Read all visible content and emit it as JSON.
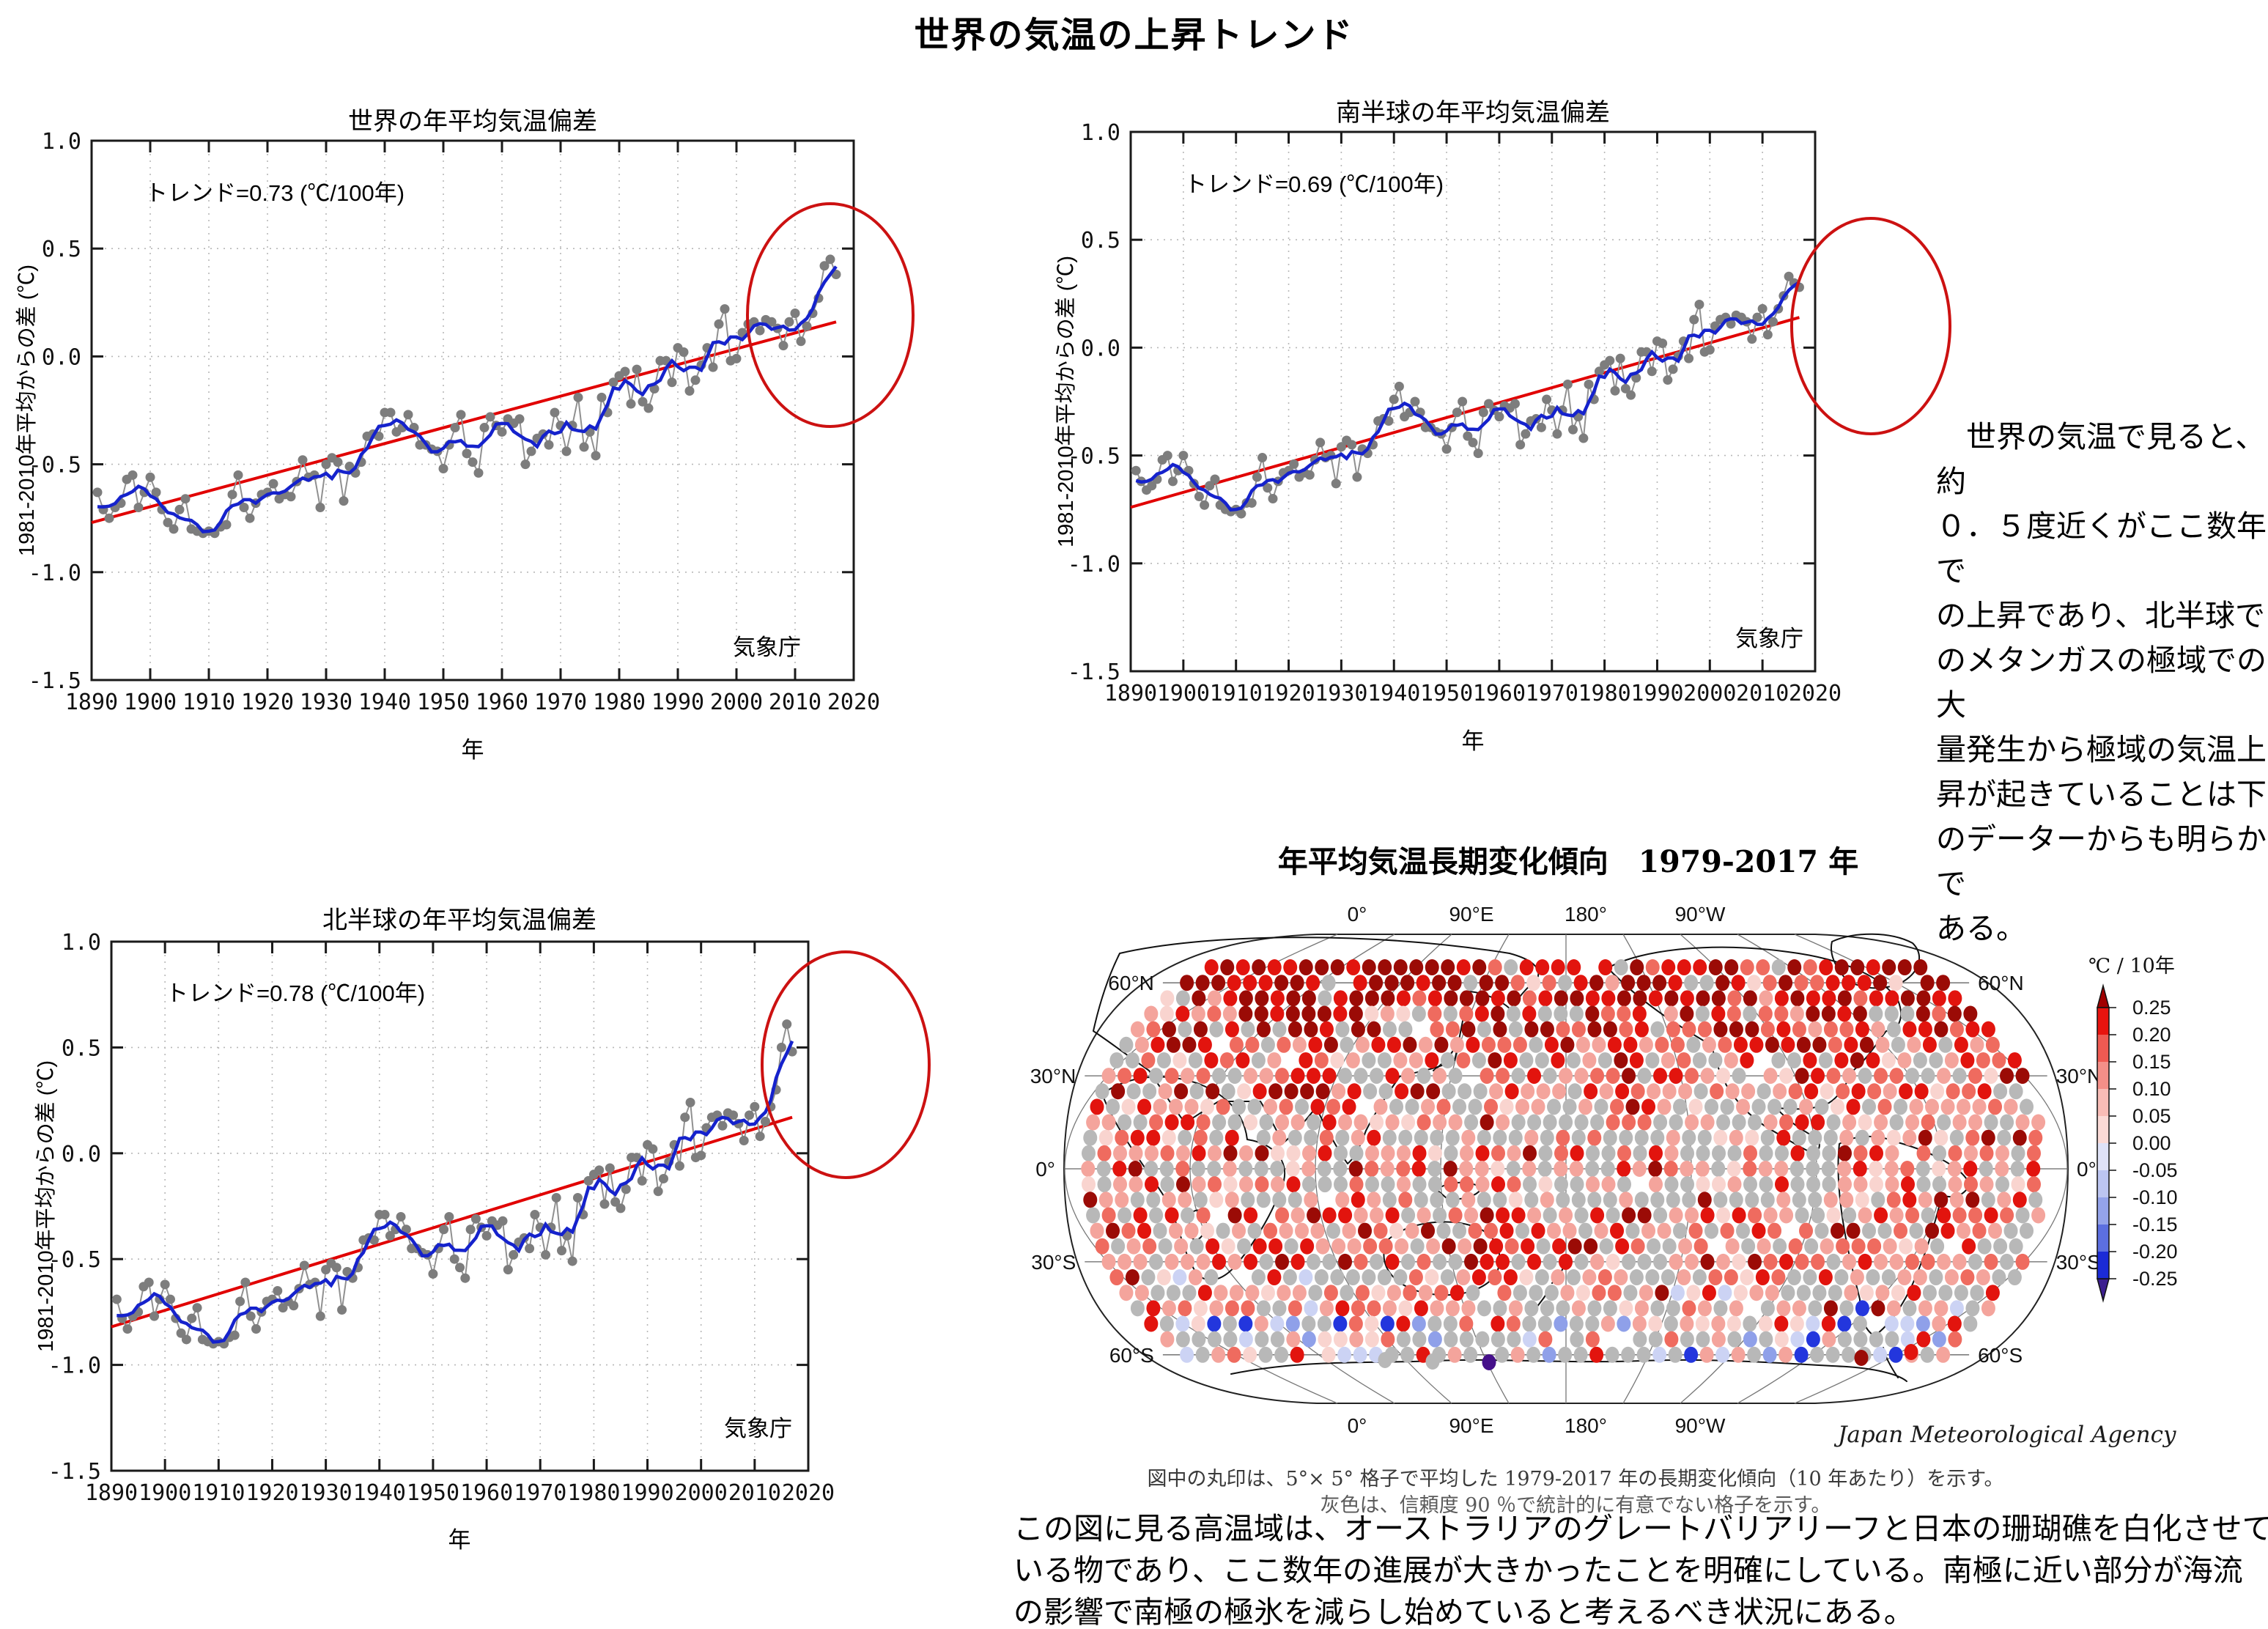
{
  "page": {
    "title": "世界の気温の上昇トレンド",
    "background": "#ffffff",
    "accent_red": "#cc1111"
  },
  "axes_common": {
    "xticks": [
      "1890",
      "1900",
      "1910",
      "1920",
      "1930",
      "1940",
      "1950",
      "1960",
      "1970",
      "1980",
      "1990",
      "2000",
      "2010",
      "2020"
    ],
    "yticks": [
      "1.0",
      "0.5",
      "0.0",
      "-0.5",
      "-1.0",
      "-1.5"
    ],
    "ytick_values": [
      1.0,
      0.5,
      0.0,
      -0.5,
      -1.0,
      -1.5
    ],
    "grid_y_values": [
      0.5,
      0.0,
      -0.5,
      -1.0
    ],
    "xlim": [
      1890,
      2020
    ],
    "ylim": [
      -1.5,
      1.0
    ]
  },
  "chart_data": [
    {
      "id": "world",
      "type": "line",
      "title": "世界の年平均気温偏差",
      "trend_label": "トレンド=0.73 (℃/100年)",
      "trend_per_century": 0.73,
      "ylabel": "1981-2010年平均からの差 (℃)",
      "xlabel": "年",
      "source": "気象庁",
      "x_start": 1891,
      "x_end": 2017,
      "values": [
        -0.63,
        -0.71,
        -0.75,
        -0.7,
        -0.68,
        -0.57,
        -0.55,
        -0.7,
        -0.63,
        -0.56,
        -0.63,
        -0.71,
        -0.77,
        -0.8,
        -0.71,
        -0.66,
        -0.8,
        -0.81,
        -0.82,
        -0.81,
        -0.82,
        -0.79,
        -0.78,
        -0.64,
        -0.55,
        -0.7,
        -0.75,
        -0.68,
        -0.64,
        -0.63,
        -0.59,
        -0.66,
        -0.64,
        -0.65,
        -0.58,
        -0.48,
        -0.56,
        -0.55,
        -0.7,
        -0.5,
        -0.47,
        -0.49,
        -0.67,
        -0.51,
        -0.54,
        -0.49,
        -0.37,
        -0.36,
        -0.37,
        -0.26,
        -0.26,
        -0.35,
        -0.33,
        -0.27,
        -0.33,
        -0.41,
        -0.41,
        -0.43,
        -0.44,
        -0.52,
        -0.41,
        -0.33,
        -0.27,
        -0.45,
        -0.49,
        -0.54,
        -0.33,
        -0.28,
        -0.32,
        -0.35,
        -0.29,
        -0.31,
        -0.29,
        -0.5,
        -0.44,
        -0.38,
        -0.36,
        -0.41,
        -0.26,
        -0.32,
        -0.44,
        -0.32,
        -0.19,
        -0.42,
        -0.35,
        -0.46,
        -0.19,
        -0.26,
        -0.12,
        -0.09,
        -0.07,
        -0.22,
        -0.06,
        -0.21,
        -0.24,
        -0.15,
        -0.02,
        -0.02,
        -0.12,
        0.04,
        0.02,
        -0.16,
        -0.11,
        -0.04,
        0.04,
        -0.05,
        0.15,
        0.22,
        -0.02,
        -0.01,
        0.11,
        0.15,
        0.16,
        0.12,
        0.17,
        0.16,
        0.13,
        0.05,
        0.16,
        0.2,
        0.07,
        0.14,
        0.2,
        0.27,
        0.42,
        0.45,
        0.38
      ],
      "trend_line": {
        "x1": 1890,
        "y1": -0.77,
        "x2": 2017,
        "y2": 0.16
      },
      "highlight_ellipse": {
        "cx": 1133,
        "cy": 430,
        "rx": 113,
        "ry": 152
      }
    },
    {
      "id": "southern-hemisphere",
      "type": "line",
      "title": "南半球の年平均気温偏差",
      "trend_label": "トレンド=0.69 (℃/100年)",
      "trend_per_century": 0.69,
      "ylabel": "1981-2010年平均からの差 (℃)",
      "xlabel": "年",
      "source": "気象庁",
      "x_start": 1891,
      "x_end": 2017,
      "values": [
        -0.57,
        -0.62,
        -0.66,
        -0.64,
        -0.61,
        -0.52,
        -0.5,
        -0.62,
        -0.57,
        -0.5,
        -0.57,
        -0.63,
        -0.69,
        -0.73,
        -0.64,
        -0.61,
        -0.73,
        -0.75,
        -0.76,
        -0.75,
        -0.77,
        -0.72,
        -0.72,
        -0.6,
        -0.51,
        -0.65,
        -0.7,
        -0.62,
        -0.58,
        -0.57,
        -0.54,
        -0.6,
        -0.58,
        -0.59,
        -0.52,
        -0.44,
        -0.51,
        -0.5,
        -0.63,
        -0.46,
        -0.43,
        -0.45,
        -0.6,
        -0.47,
        -0.49,
        -0.45,
        -0.34,
        -0.33,
        -0.34,
        -0.24,
        -0.18,
        -0.32,
        -0.3,
        -0.25,
        -0.3,
        -0.37,
        -0.37,
        -0.39,
        -0.4,
        -0.47,
        -0.37,
        -0.3,
        -0.25,
        -0.41,
        -0.44,
        -0.49,
        -0.3,
        -0.26,
        -0.29,
        -0.32,
        -0.27,
        -0.28,
        -0.26,
        -0.45,
        -0.4,
        -0.34,
        -0.33,
        -0.37,
        -0.24,
        -0.29,
        -0.4,
        -0.29,
        -0.17,
        -0.38,
        -0.32,
        -0.42,
        -0.17,
        -0.24,
        -0.11,
        -0.08,
        -0.06,
        -0.2,
        -0.05,
        -0.19,
        -0.22,
        -0.14,
        -0.02,
        -0.02,
        -0.11,
        0.03,
        0.02,
        -0.15,
        -0.1,
        -0.04,
        0.03,
        -0.05,
        0.13,
        0.2,
        -0.02,
        -0.01,
        0.1,
        0.13,
        0.14,
        0.11,
        0.15,
        0.14,
        0.12,
        0.04,
        0.14,
        0.18,
        0.06,
        0.12,
        0.18,
        0.24,
        0.33,
        0.3,
        0.28
      ],
      "trend_line": {
        "x1": 1890,
        "y1": -0.74,
        "x2": 2017,
        "y2": 0.14
      },
      "highlight_ellipse": {
        "cx": 2553,
        "cy": 445,
        "rx": 108,
        "ry": 147
      }
    },
    {
      "id": "northern-hemisphere",
      "type": "line",
      "title": "北半球の年平均気温偏差",
      "trend_label": "トレンド=0.78 (℃/100年)",
      "trend_per_century": 0.78,
      "ylabel": "1981-2010年平均からの差 (℃)",
      "xlabel": "年",
      "source": "気象庁",
      "x_start": 1891,
      "x_end": 2017,
      "values": [
        -0.69,
        -0.78,
        -0.83,
        -0.77,
        -0.75,
        -0.63,
        -0.61,
        -0.77,
        -0.69,
        -0.62,
        -0.69,
        -0.78,
        -0.85,
        -0.88,
        -0.78,
        -0.73,
        -0.88,
        -0.89,
        -0.9,
        -0.89,
        -0.9,
        -0.87,
        -0.86,
        -0.7,
        -0.61,
        -0.77,
        -0.83,
        -0.75,
        -0.7,
        -0.69,
        -0.65,
        -0.73,
        -0.7,
        -0.72,
        -0.64,
        -0.53,
        -0.62,
        -0.61,
        -0.77,
        -0.55,
        -0.52,
        -0.54,
        -0.74,
        -0.56,
        -0.59,
        -0.54,
        -0.41,
        -0.4,
        -0.41,
        -0.29,
        -0.29,
        -0.39,
        -0.36,
        -0.3,
        -0.36,
        -0.45,
        -0.45,
        -0.47,
        -0.48,
        -0.57,
        -0.45,
        -0.36,
        -0.3,
        -0.5,
        -0.54,
        -0.59,
        -0.36,
        -0.31,
        -0.35,
        -0.39,
        -0.32,
        -0.34,
        -0.32,
        -0.55,
        -0.48,
        -0.42,
        -0.4,
        -0.45,
        -0.29,
        -0.35,
        -0.48,
        -0.35,
        -0.21,
        -0.46,
        -0.39,
        -0.51,
        -0.21,
        -0.29,
        -0.13,
        -0.1,
        -0.08,
        -0.24,
        -0.07,
        -0.23,
        -0.26,
        -0.17,
        -0.02,
        -0.02,
        -0.13,
        0.04,
        0.02,
        -0.18,
        -0.12,
        -0.04,
        0.04,
        -0.06,
        0.17,
        0.24,
        -0.02,
        -0.01,
        0.12,
        0.17,
        0.18,
        0.13,
        0.19,
        0.18,
        0.14,
        0.06,
        0.18,
        0.22,
        0.08,
        0.15,
        0.22,
        0.3,
        0.5,
        0.61,
        0.48
      ],
      "trend_line": {
        "x1": 1890,
        "y1": -0.82,
        "x2": 2017,
        "y2": 0.17
      },
      "highlight_ellipse": {
        "cx": 1154,
        "cy": 1453,
        "rx": 114,
        "ry": 154
      }
    },
    {
      "id": "trend-map",
      "type": "map",
      "title": "年平均気温長期変化傾向　1979-2017 年",
      "period": "1979-2017",
      "units": "℃ / 10年",
      "lon_labels": [
        "0°",
        "90°E",
        "180°",
        "90°W"
      ],
      "lat_labels": [
        "60°N",
        "30°N",
        "0°",
        "30°S",
        "60°S"
      ],
      "lat_values": [
        60,
        30,
        0,
        -30,
        -60
      ],
      "colorbar": {
        "title": "℃ / 10年",
        "tick_labels": [
          "0.25",
          "0.20",
          "0.15",
          "0.10",
          "0.05",
          "0.00",
          "-0.05",
          "-0.10",
          "-0.15",
          "-0.20",
          "-0.25"
        ],
        "segment_colors": [
          "#e8140f",
          "#ef5a52",
          "#f48f88",
          "#f8bcb6",
          "#fbdad6",
          "#dfe2f7",
          "#bcc5f1",
          "#94a3ea",
          "#5c6fe0",
          "#1b2bd6"
        ],
        "arrow_top_color": "#a00000",
        "arrow_bottom_color": "#3d1f8f"
      },
      "dots": {
        "seed": 20180409,
        "palette": {
          "dark": "#9b0b06",
          "red": "#e2140e",
          "sal": "#ef6b5f",
          "pink": "#f4a49c",
          "pale": "#f9d4cf",
          "gray": "#b8b8b8",
          "pblue": "#ccd3f4",
          "lblue": "#8fa0e9",
          "blue": "#2336dd",
          "purple": "#45108a"
        },
        "lats": [
          65,
          60,
          55,
          50,
          45,
          40,
          35,
          30,
          25,
          20,
          15,
          10,
          5,
          0,
          -5,
          -10,
          -15,
          -20,
          -25,
          -30,
          -35,
          -40,
          -45,
          -50,
          -55,
          -60
        ],
        "spacing_px": 21.5,
        "bands": [
          {
            "lat": [
              52,
              90
            ],
            "w": {
              "dark": 0.42,
              "red": 0.27,
              "sal": 0.09,
              "pink": 0.06,
              "pale": 0.02,
              "gray": 0.1,
              "none": 0.04
            }
          },
          {
            "lat": [
              38,
              52
            ],
            "w": {
              "dark": 0.2,
              "red": 0.24,
              "sal": 0.17,
              "pink": 0.13,
              "pale": 0.04,
              "gray": 0.2,
              "none": 0.02
            }
          },
          {
            "lat": [
              22,
              38
            ],
            "w": {
              "dark": 0.07,
              "red": 0.18,
              "sal": 0.2,
              "pink": 0.2,
              "pale": 0.05,
              "gray": 0.28,
              "none": 0.02
            }
          },
          {
            "lat": [
              8,
              22
            ],
            "w": {
              "dark": 0.03,
              "red": 0.1,
              "sal": 0.15,
              "pink": 0.28,
              "pale": 0.08,
              "gray": 0.34,
              "none": 0.02
            }
          },
          {
            "lat": [
              -12,
              8
            ],
            "w": {
              "dark": 0.04,
              "red": 0.1,
              "sal": 0.14,
              "pink": 0.3,
              "pale": 0.06,
              "gray": 0.34,
              "none": 0.02
            }
          },
          {
            "lat": [
              -32,
              -12
            ],
            "w": {
              "dark": 0.07,
              "red": 0.15,
              "sal": 0.16,
              "pink": 0.23,
              "pale": 0.05,
              "gray": 0.31,
              "none": 0.03
            }
          },
          {
            "lat": [
              -46,
              -32
            ],
            "w": {
              "dark": 0.02,
              "red": 0.08,
              "sal": 0.12,
              "pink": 0.24,
              "pale": 0.09,
              "gray": 0.39,
              "pblue": 0.03,
              "none": 0.03
            }
          },
          {
            "lat": [
              -61,
              -46
            ],
            "w": {
              "red": 0.04,
              "sal": 0.05,
              "pink": 0.11,
              "pale": 0.08,
              "gray": 0.46,
              "pblue": 0.1,
              "lblue": 0.06,
              "blue": 0.04,
              "none": 0.06
            }
          },
          {
            "lat": [
              -90,
              -61
            ],
            "w": {
              "gray": 0.35,
              "pblue": 0.1,
              "lblue": 0.08,
              "blue": 0.06,
              "red": 0.05,
              "pink": 0.06,
              "none": 0.3
            }
          }
        ],
        "clusters": [
          {
            "lat": [
              -14,
              18
            ],
            "fx": [
              0.45,
              0.78
            ],
            "boost": {
              "gray": 2.6,
              "pale": 1.3
            }
          },
          {
            "lat": [
              44,
              72
            ],
            "fx": [
              0.02,
              0.42
            ],
            "boost": {
              "dark": 2.2,
              "red": 1.3
            }
          },
          {
            "lat": [
              -38,
              -20
            ],
            "fx": [
              0.36,
              0.56
            ],
            "boost": {
              "dark": 2.4,
              "red": 1.9
            }
          },
          {
            "lat": [
              -60,
              -42
            ],
            "fx": [
              0.76,
              0.93
            ],
            "boost": {
              "blue": 5.0,
              "lblue": 4.0,
              "pblue": 2.0
            }
          }
        ],
        "extra_dots": [
          {
            "x": 450,
            "y": 601,
            "c": "gray"
          },
          {
            "x": 515,
            "y": 603,
            "c": "gray"
          },
          {
            "x": 592,
            "y": 604,
            "c": "purple"
          },
          {
            "x": 1100,
            "y": 598,
            "c": "dark"
          },
          {
            "x": 1168,
            "y": 590,
            "c": "red"
          }
        ]
      },
      "coastlines": [
        "M 88 46 C 200 20 420 14 620 46 C 650 54 664 66 658 80 C 640 96 630 110 621 122 C 606 108 584 100 566 98 C 556 130 552 164 545 192 C 520 204 492 208 470 214 C 452 240 436 264 424 288 C 416 310 408 326 399 333 C 388 318 372 290 356 256 C 342 274 326 292 311 305 C 300 284 290 264 280 248 C 262 248 240 248 223 248 C 206 258 190 270 177 277 C 160 255 143 228 128 206 C 102 188 76 168 52 152 C 60 116 72 78 88 46 Z",
        "M 64 238 C 100 212 150 208 196 224 C 236 240 258 266 262 300 C 300 306 318 330 312 356 C 300 394 276 436 248 470 C 228 494 204 500 190 478 C 174 452 168 412 150 380 C 124 338 84 290 64 238 Z",
        "M 186 400 C 196 392 206 398 206 414 C 204 432 194 442 186 434 C 182 422 182 410 186 400 Z",
        "M 455 436 C 480 414 530 406 570 418 C 600 428 612 452 604 478 C 594 502 560 514 524 512 C 490 510 462 496 452 474 C 446 460 448 448 455 436 Z",
        "M 520 368 C 540 356 566 356 582 366 C 576 378 552 384 534 380 Z",
        "M 516 206 C 530 196 544 182 550 164",
        "M 656 530 C 664 520 672 510 676 500 M 678 496 C 686 488 692 480 694 472",
        "M 754 66 C 800 40 900 30 1000 44 C 1080 54 1130 80 1150 110 C 1160 135 1150 152 1134 152 C 1120 170 1108 190 1090 205 C 1080 222 1072 240 1056 250 C 1030 262 1005 258 984 257 C 1000 275 1020 288 1039 298 C 1048 310 1040 320 1028 316 C 1008 306 990 294 972 284 C 950 270 930 250 916 226 C 906 208 900 190 896 172 C 860 150 806 120 754 66 Z",
        "M 1060 30 C 1090 16 1140 16 1170 32 C 1186 48 1180 70 1158 84 C 1132 98 1098 96 1078 80 C 1064 64 1056 46 1060 30 Z",
        "M 1070 306 C 1090 294 1120 292 1150 304 C 1200 318 1240 340 1248 362 C 1238 380 1222 380 1210 376 C 1202 410 1190 450 1174 488 C 1160 522 1140 552 1118 568 C 1104 560 1098 540 1098 518 C 1090 486 1082 454 1077 424 C 1070 384 1066 344 1070 306 Z",
        "M 240 620 C 340 600 420 606 520 602 C 600 598 700 606 800 602 C 900 598 1000 606 1080 610 C 1120 613 1150 620 1162 630 M 1150 625 C 1140 610 1132 596 1130 584"
      ]
    }
  ],
  "right_note": {
    "lines": [
      "　世界の気温で見ると、約",
      "０．５度近くがここ数年で",
      "の上昇であり、北半球で",
      "のメタンガスの極域での大",
      "量発生から極域の気温上",
      "昇が起きていることは下",
      "のデーターからも明らかで",
      "ある。"
    ]
  },
  "map_caption": {
    "line1": "図中の丸印は、5°× 5° 格子で平均した 1979-2017 年の長期変化傾向（10 年あたり）を示す。",
    "line2": "灰色は、信頼度 90 ％で統計的に有意でない格子を示す。",
    "credit": "Japan Meteorological Agency"
  },
  "bottom_note": {
    "lines": [
      "この図に見る高温域は、オーストラリアのグレートバリアリーフと日本の珊瑚礁を白化させて",
      "いる物であり、ここ数年の進展が大きかったことを明確にしている。南極に近い部分が海流",
      "の影響で南極の極氷を減らし始めていると考えるべき状況にある。"
    ]
  }
}
